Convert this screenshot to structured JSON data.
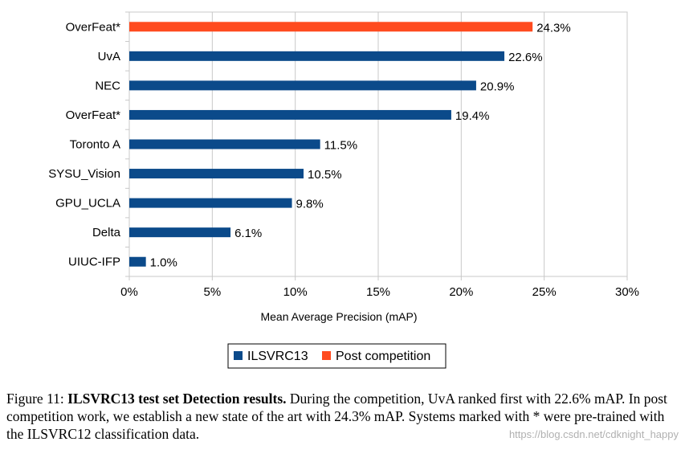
{
  "chart_data": {
    "type": "bar",
    "orientation": "horizontal",
    "categories": [
      "OverFeat*",
      "UvA",
      "NEC",
      "OverFeat*",
      "Toronto A",
      "SYSU_Vision",
      "GPU_UCLA",
      "Delta",
      "UIUC-IFP"
    ],
    "values": [
      24.3,
      22.6,
      20.9,
      19.4,
      11.5,
      10.5,
      9.8,
      6.1,
      1.0
    ],
    "series_of_bar": [
      "Post competition",
      "ILSVRC13",
      "ILSVRC13",
      "ILSVRC13",
      "ILSVRC13",
      "ILSVRC13",
      "ILSVRC13",
      "ILSVRC13",
      "ILSVRC13"
    ],
    "value_labels": [
      "24.3%",
      "22.6%",
      "20.9%",
      "19.4%",
      "11.5%",
      "10.5%",
      "9.8%",
      "6.1%",
      "1.0%"
    ],
    "xlabel": "Mean Average Precision (mAP)",
    "xlim": [
      0,
      30
    ],
    "xticks": [
      0,
      5,
      10,
      15,
      20,
      25,
      30
    ],
    "xtick_labels": [
      "0%",
      "5%",
      "10%",
      "15%",
      "20%",
      "25%",
      "30%"
    ],
    "legend": [
      {
        "name": "ILSVRC13",
        "color": "#0b4a8a"
      },
      {
        "name": "Post competition",
        "color": "#ff4b1f"
      }
    ],
    "legend_position": "bottom-center",
    "grid": "vertical"
  },
  "caption": {
    "prefix": "Figure 11: ",
    "bold": "ILSVRC13 test set Detection results.",
    "rest": " During the competition, UvA ranked first with 22.6% mAP. In post competition work, we establish a new state of the art with 24.3% mAP. Systems marked with * were pre-trained with the ILSVRC12 classification data."
  },
  "watermark": "https://blog.csdn.net/cdknight_happy"
}
